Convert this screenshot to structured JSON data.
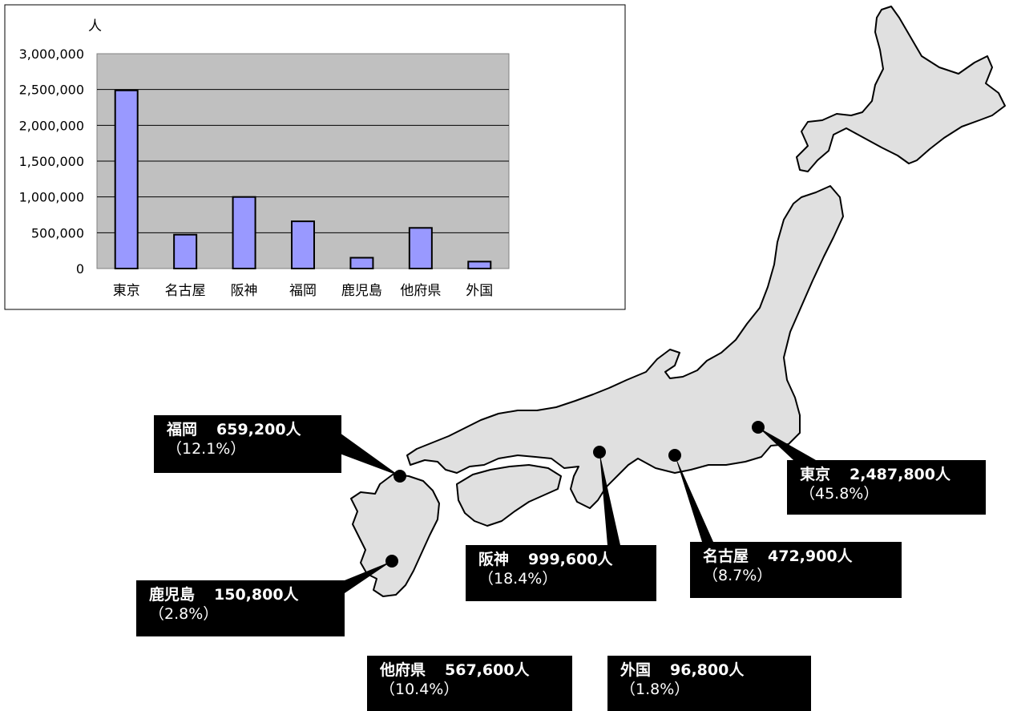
{
  "chart_data": {
    "type": "bar",
    "unit_label": "人",
    "categories": [
      "東京",
      "名古屋",
      "阪神",
      "福岡",
      "鹿児島",
      "他府県",
      "外国"
    ],
    "values": [
      2487800,
      472900,
      999600,
      659200,
      150800,
      567600,
      96800
    ],
    "ylim": [
      0,
      3000000
    ],
    "yticks": [
      "0",
      "500,000",
      "1,000,000",
      "1,500,000",
      "2,000,000",
      "2,500,000",
      "3,000,000"
    ],
    "grid": true,
    "colors": {
      "bar": "#9999ff",
      "plot_bg": "#c0c0c0"
    }
  },
  "callouts": [
    {
      "name": "東京",
      "value": "2,487,800人",
      "percent": "（45.8%）"
    },
    {
      "name": "名古屋",
      "value": "472,900人",
      "percent": "（8.7%）"
    },
    {
      "name": "阪神",
      "value": "999,600人",
      "percent": "（18.4%）"
    },
    {
      "name": "福岡",
      "value": "659,200人",
      "percent": "（12.1%）"
    },
    {
      "name": "鹿児島",
      "value": "150,800人",
      "percent": "（2.8%）"
    },
    {
      "name": "他府県",
      "value": "567,600人",
      "percent": "（10.4%）"
    },
    {
      "name": "外国",
      "value": "96,800人",
      "percent": "（1.8%）"
    }
  ]
}
